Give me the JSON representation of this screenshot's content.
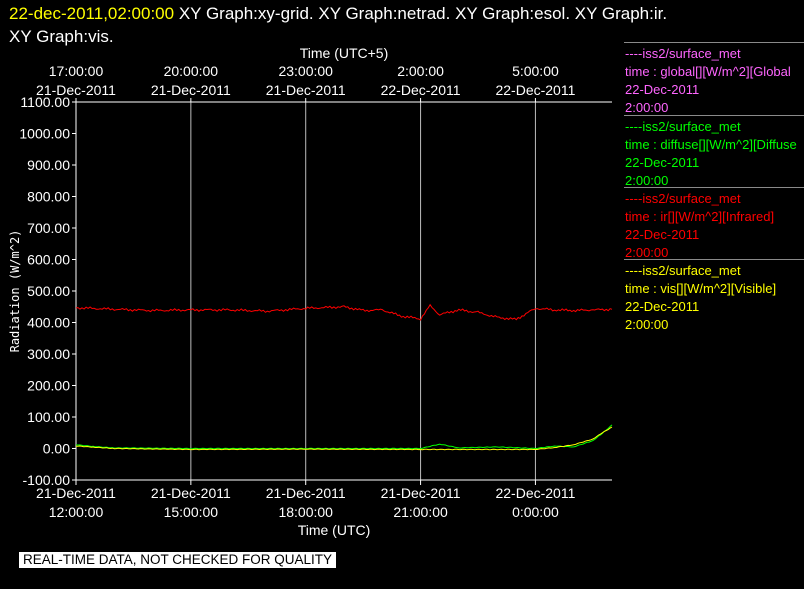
{
  "header": {
    "timestamp": "22-dec-2011,02:00:00",
    "graphs_line1": "XY Graph:xy-grid.  XY Graph:netrad.  XY Graph:esol.  XY Graph:ir.",
    "graphs_line2": "XY Graph:vis."
  },
  "notice": "REAL-TIME DATA, NOT CHECKED FOR QUALITY",
  "legend": [
    {
      "source": "----iss2/surface_met",
      "variable": "time : global[][W/m^2][Global",
      "date": "22-Dec-2011",
      "time": "2:00:00",
      "color": "#ff66ff"
    },
    {
      "source": "----iss2/surface_met",
      "variable": "time : diffuse[][W/m^2][Diffuse",
      "date": "22-Dec-2011",
      "time": "2:00:00",
      "color": "#00ff00"
    },
    {
      "source": "----iss2/surface_met",
      "variable": "time : ir[][W/m^2][Infrared]",
      "date": "22-Dec-2011",
      "time": "2:00:00",
      "color": "#ff0000"
    },
    {
      "source": "----iss2/surface_met",
      "variable": "time : vis[][W/m^2][Visible]",
      "date": "22-Dec-2011",
      "time": "2:00:00",
      "color": "#ffff00"
    }
  ],
  "chart_data": {
    "type": "line",
    "xlabel": "Time (UTC)",
    "x2label": "Time (UTC+5)",
    "ylabel": "Radiation (W/m^2)",
    "ylim": [
      -100,
      1100
    ],
    "yticks": [
      "1100.00",
      "1000.00",
      "900.00",
      "800.00",
      "700.00",
      "600.00",
      "500.00",
      "400.00",
      "300.00",
      "200.00",
      "100.00",
      "0.00",
      "-100.00"
    ],
    "xlim": [
      "2011-12-21T12:00:00Z",
      "2011-12-22T02:00:00Z"
    ],
    "grid": "vertical",
    "xticks_bottom": [
      {
        "t": "2011-12-21T12:00:00Z",
        "date": "21-Dec-2011",
        "time": "12:00:00"
      },
      {
        "t": "2011-12-21T15:00:00Z",
        "date": "21-Dec-2011",
        "time": "15:00:00"
      },
      {
        "t": "2011-12-21T18:00:00Z",
        "date": "21-Dec-2011",
        "time": "18:00:00"
      },
      {
        "t": "2011-12-21T21:00:00Z",
        "date": "21-Dec-2011",
        "time": "21:00:00"
      },
      {
        "t": "2011-12-22T00:00:00Z",
        "date": "22-Dec-2011",
        "time": "0:00:00"
      }
    ],
    "xticks_top": [
      {
        "t": "2011-12-21T12:00:00Z",
        "date": "21-Dec-2011",
        "time": "17:00:00"
      },
      {
        "t": "2011-12-21T15:00:00Z",
        "date": "21-Dec-2011",
        "time": "20:00:00"
      },
      {
        "t": "2011-12-21T18:00:00Z",
        "date": "21-Dec-2011",
        "time": "23:00:00"
      },
      {
        "t": "2011-12-21T21:00:00Z",
        "date": "22-Dec-2011",
        "time": "2:00:00"
      },
      {
        "t": "2011-12-22T00:00:00Z",
        "date": "22-Dec-2011",
        "time": "5:00:00"
      }
    ],
    "series": [
      {
        "name": "ir",
        "color": "#ff0000",
        "x": [
          "2011-12-21T12:00:00Z",
          "2011-12-21T13:00:00Z",
          "2011-12-21T14:00:00Z",
          "2011-12-21T15:00:00Z",
          "2011-12-21T16:00:00Z",
          "2011-12-21T17:00:00Z",
          "2011-12-21T18:00:00Z",
          "2011-12-21T19:00:00Z",
          "2011-12-21T19:30:00Z",
          "2011-12-21T20:00:00Z",
          "2011-12-21T20:30:00Z",
          "2011-12-21T21:00:00Z",
          "2011-12-21T21:15:00Z",
          "2011-12-21T21:30:00Z",
          "2011-12-21T22:00:00Z",
          "2011-12-21T22:30:00Z",
          "2011-12-21T23:00:00Z",
          "2011-12-21T23:30:00Z",
          "2011-12-22T00:00:00Z",
          "2011-12-22T00:30:00Z",
          "2011-12-22T01:00:00Z",
          "2011-12-22T01:30:00Z",
          "2011-12-22T02:00:00Z"
        ],
        "values": [
          447,
          442,
          438,
          440,
          440,
          436,
          445,
          450,
          438,
          440,
          420,
          412,
          453,
          425,
          440,
          432,
          416,
          410,
          445,
          440,
          438,
          440,
          442
        ]
      },
      {
        "name": "diffuse",
        "color": "#00ff00",
        "x": [
          "2011-12-21T12:00:00Z",
          "2011-12-21T12:30:00Z",
          "2011-12-21T13:00:00Z",
          "2011-12-21T15:00:00Z",
          "2011-12-21T18:00:00Z",
          "2011-12-21T21:00:00Z",
          "2011-12-21T21:30:00Z",
          "2011-12-21T22:00:00Z",
          "2011-12-21T23:00:00Z",
          "2011-12-22T00:00:00Z",
          "2011-12-22T00:30:00Z",
          "2011-12-22T01:00:00Z",
          "2011-12-22T01:30:00Z",
          "2011-12-22T01:45:00Z",
          "2011-12-22T02:00:00Z"
        ],
        "values": [
          12,
          6,
          2,
          0,
          0,
          0,
          14,
          2,
          5,
          0,
          8,
          5,
          25,
          48,
          75
        ]
      },
      {
        "name": "vis",
        "color": "#ffff00",
        "x": [
          "2011-12-21T12:00:00Z",
          "2011-12-21T12:30:00Z",
          "2011-12-21T13:00:00Z",
          "2011-12-21T15:00:00Z",
          "2011-12-21T18:00:00Z",
          "2011-12-21T21:00:00Z",
          "2011-12-22T00:00:00Z",
          "2011-12-22T00:30:00Z",
          "2011-12-22T01:00:00Z",
          "2011-12-22T01:30:00Z",
          "2011-12-22T01:45:00Z",
          "2011-12-22T02:00:00Z"
        ],
        "values": [
          8,
          4,
          0,
          -3,
          -2,
          -3,
          -3,
          3,
          12,
          30,
          50,
          68
        ]
      }
    ]
  }
}
